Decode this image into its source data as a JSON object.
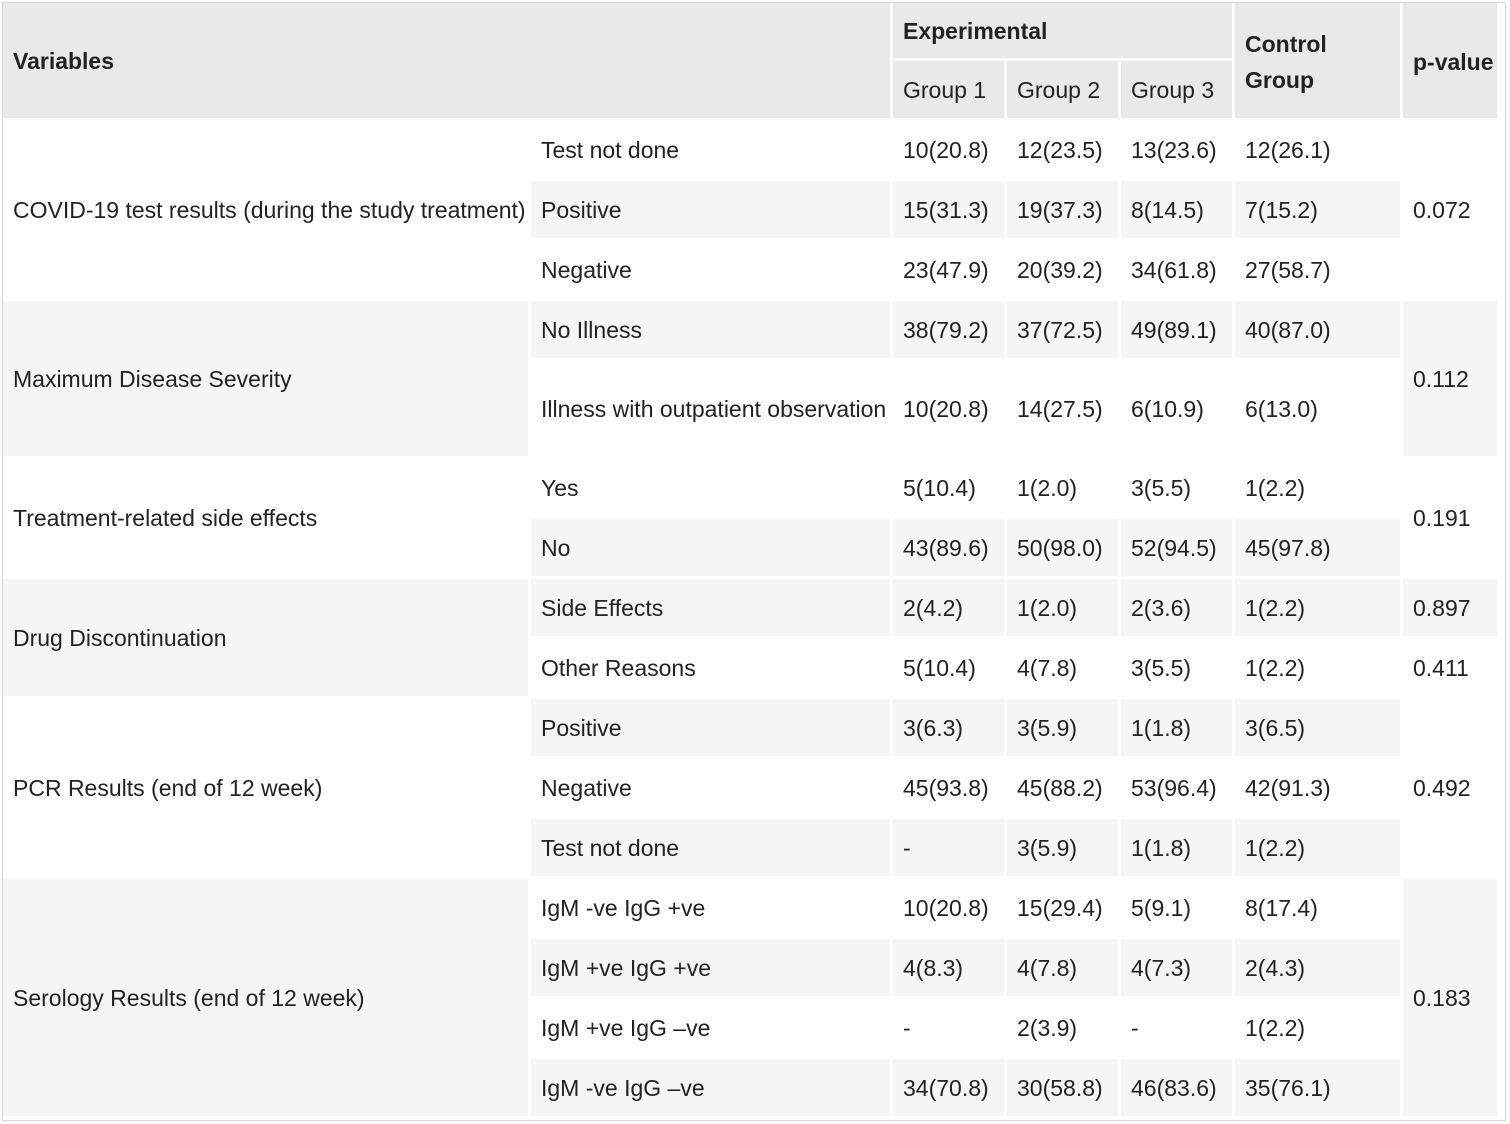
{
  "header": {
    "variables": "Variables",
    "experimental": "Experimental",
    "group1": "Group 1",
    "group2": "Group 2",
    "group3": "Group 3",
    "control": "Control Group",
    "pvalue": "p-value"
  },
  "sections": [
    {
      "variable": "COVID-19 test results (during the study treatment)",
      "p": "0.072",
      "rows": [
        {
          "label": "Test not done",
          "g1": "10(20.8)",
          "g2": "12(23.5)",
          "g3": "13(23.6)",
          "c": "12(26.1)"
        },
        {
          "label": "Positive",
          "g1": "15(31.3)",
          "g2": "19(37.3)",
          "g3": "8(14.5)",
          "c": "7(15.2)"
        },
        {
          "label": "Negative",
          "g1": "23(47.9)",
          "g2": "20(39.2)",
          "g3": "34(61.8)",
          "c": "27(58.7)"
        }
      ]
    },
    {
      "variable": "Maximum Disease Severity",
      "p": "0.112",
      "rows": [
        {
          "label": "No Illness",
          "g1": "38(79.2)",
          "g2": "37(72.5)",
          "g3": "49(89.1)",
          "c": "40(87.0)"
        },
        {
          "label": "Illness with outpatient observation",
          "g1": "10(20.8)",
          "g2": "14(27.5)",
          "g3": "6(10.9)",
          "c": "6(13.0)"
        }
      ]
    },
    {
      "variable": "Treatment-related side effects",
      "p": "0.191",
      "rows": [
        {
          "label": "Yes",
          "g1": "5(10.4)",
          "g2": "1(2.0)",
          "g3": "3(5.5)",
          "c": "1(2.2)"
        },
        {
          "label": "No",
          "g1": "43(89.6)",
          "g2": "50(98.0)",
          "g3": "52(94.5)",
          "c": "45(97.8)"
        }
      ]
    },
    {
      "variable": "Drug Discontinuation",
      "rows": [
        {
          "label": "Side Effects",
          "g1": "2(4.2)",
          "g2": "1(2.0)",
          "g3": "2(3.6)",
          "c": "1(2.2)",
          "p": "0.897"
        },
        {
          "label": "Other Reasons",
          "g1": "5(10.4)",
          "g2": "4(7.8)",
          "g3": "3(5.5)",
          "c": "1(2.2)",
          "p": "0.411"
        }
      ]
    },
    {
      "variable": "PCR Results (end of 12 week)",
      "p": "0.492",
      "rows": [
        {
          "label": "Positive",
          "g1": "3(6.3)",
          "g2": "3(5.9)",
          "g3": "1(1.8)",
          "c": "3(6.5)"
        },
        {
          "label": "Negative",
          "g1": "45(93.8)",
          "g2": "45(88.2)",
          "g3": "53(96.4)",
          "c": "42(91.3)"
        },
        {
          "label": "Test not done",
          "g1": "-",
          "g2": "3(5.9)",
          "g3": "1(1.8)",
          "c": "1(2.2)"
        }
      ]
    },
    {
      "variable": "Serology Results (end of 12 week)",
      "p": "0.183",
      "rows": [
        {
          "label": "IgM -ve IgG +ve",
          "g1": "10(20.8)",
          "g2": "15(29.4)",
          "g3": "5(9.1)",
          "c": "8(17.4)"
        },
        {
          "label": "IgM +ve IgG +ve",
          "g1": "4(8.3)",
          "g2": "4(7.8)",
          "g3": "4(7.3)",
          "c": "2(4.3)"
        },
        {
          "label": "IgM +ve IgG –ve",
          "g1": "-",
          "g2": "2(3.9)",
          "g3": "-",
          "c": "1(2.2)"
        },
        {
          "label": "IgM -ve IgG –ve",
          "g1": "34(70.8)",
          "g2": "30(58.8)",
          "g3": "46(83.6)",
          "c": "35(76.1)"
        }
      ]
    }
  ]
}
